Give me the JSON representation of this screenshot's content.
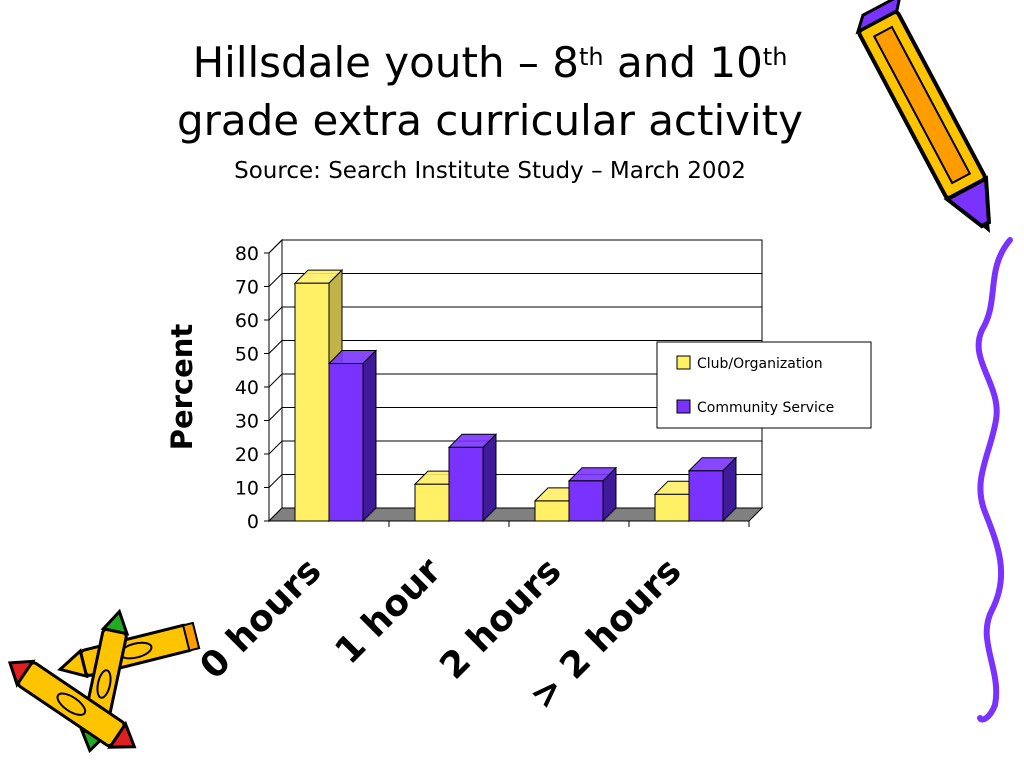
{
  "slide": {
    "title_part1": "Hillsdale youth – 8",
    "title_sup1": "th",
    "title_part2": " and 10",
    "title_sup2": "th",
    "title_line2": "grade extra curricular activity",
    "subtitle": "Source: Search Institute Study – March 2002"
  },
  "decorations": {
    "top_right": "pencil-clipart",
    "bottom_left": "crayons-clipart",
    "right_edge": "wavy-border-line"
  },
  "colors": {
    "club": "#FFF066",
    "club_dark": "#BFB34A",
    "community": "#7A33FF",
    "community_dark": "#3F1A9A",
    "floor": "#808080"
  },
  "chart_data": {
    "type": "bar",
    "categories": [
      "0 hours",
      "1 hour",
      "2 hours",
      "> 2 hours"
    ],
    "series": [
      {
        "name": "Club/Organization",
        "values": [
          71,
          11,
          6,
          8
        ]
      },
      {
        "name": "Community Service",
        "values": [
          47,
          22,
          12,
          15
        ]
      }
    ],
    "ylabel": "Percent",
    "xlabel": "",
    "ylim": [
      0,
      80
    ],
    "yticks": [
      0,
      10,
      20,
      30,
      40,
      50,
      60,
      70,
      80
    ],
    "grid": true,
    "legend_position": "right",
    "style": "3d-clustered-column"
  }
}
